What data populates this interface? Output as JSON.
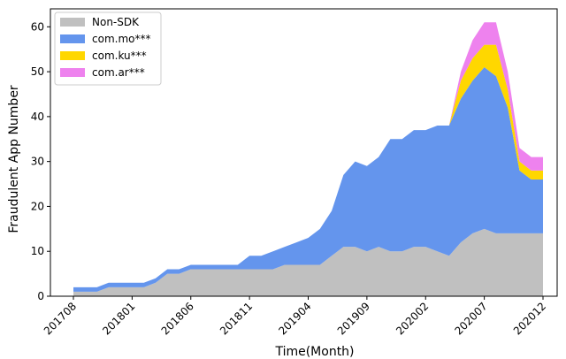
{
  "chart_data": {
    "type": "stacked_area",
    "xlabel": "Time(Month)",
    "ylabel": "Fraudulent App Number",
    "categories": [
      "201708",
      null,
      null,
      null,
      null,
      "201801",
      null,
      null,
      null,
      null,
      "201806",
      null,
      null,
      null,
      null,
      "201811",
      null,
      null,
      null,
      null,
      "201904",
      null,
      null,
      null,
      null,
      "201909",
      null,
      null,
      null,
      null,
      "202002",
      null,
      null,
      null,
      null,
      "202007",
      null,
      null,
      null,
      null,
      "202012"
    ],
    "series": [
      {
        "name": "Non-SDK",
        "color": "#c0c0c0",
        "values": [
          1,
          1,
          1,
          2,
          2,
          2,
          2,
          3,
          5,
          5,
          6,
          6,
          6,
          6,
          6,
          6,
          6,
          6,
          7,
          7,
          7,
          7,
          9,
          11,
          11,
          10,
          11,
          10,
          10,
          11,
          11,
          10,
          9,
          12,
          14,
          15,
          14,
          14,
          14,
          14,
          14
        ]
      },
      {
        "name": "com.mo***",
        "color": "#6495ed",
        "values": [
          1,
          1,
          1,
          1,
          1,
          1,
          1,
          1,
          1,
          1,
          1,
          1,
          1,
          1,
          1,
          3,
          3,
          4,
          4,
          5,
          6,
          8,
          10,
          16,
          19,
          19,
          20,
          25,
          25,
          26,
          26,
          28,
          29,
          32,
          34,
          36,
          35,
          28,
          14,
          12,
          12
        ]
      },
      {
        "name": "com.ku***",
        "color": "#ffd700",
        "values": [
          0,
          0,
          0,
          0,
          0,
          0,
          0,
          0,
          0,
          0,
          0,
          0,
          0,
          0,
          0,
          0,
          0,
          0,
          0,
          0,
          0,
          0,
          0,
          0,
          0,
          0,
          0,
          0,
          0,
          0,
          0,
          0,
          0,
          4,
          5,
          5,
          7,
          4,
          2,
          2,
          2
        ]
      },
      {
        "name": "com.ar***",
        "color": "#ee82ee",
        "values": [
          0,
          0,
          0,
          0,
          0,
          0,
          0,
          0,
          0,
          0,
          0,
          0,
          0,
          0,
          0,
          0,
          0,
          0,
          0,
          0,
          0,
          0,
          0,
          0,
          0,
          0,
          0,
          0,
          0,
          0,
          0,
          0,
          0,
          2,
          4,
          5,
          5,
          4,
          3,
          3,
          3
        ]
      }
    ],
    "ylim": [
      0,
      64
    ],
    "yticks": [
      0,
      10,
      20,
      30,
      40,
      50,
      60
    ],
    "legend": "upper left"
  }
}
